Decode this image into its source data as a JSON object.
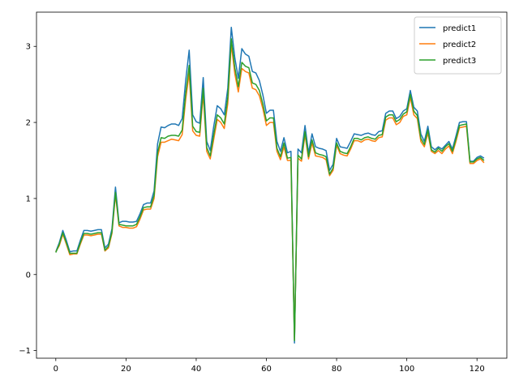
{
  "chart_data": {
    "type": "line",
    "title": "",
    "xlabel": "",
    "ylabel": "",
    "xlim": [
      -5.5,
      128.5
    ],
    "ylim": [
      -1.1,
      3.45
    ],
    "xticks": [
      0,
      20,
      40,
      60,
      80,
      100,
      120
    ],
    "yticks": [
      -1,
      0,
      1,
      2,
      3
    ],
    "grid": false,
    "legend_position": "top-right",
    "x_start": 0,
    "series": [
      {
        "name": "predict1",
        "color": "#1f77b4",
        "values": [
          0.3,
          0.42,
          0.58,
          0.45,
          0.3,
          0.31,
          0.31,
          0.45,
          0.58,
          0.58,
          0.57,
          0.58,
          0.59,
          0.59,
          0.35,
          0.4,
          0.6,
          1.15,
          0.68,
          0.7,
          0.7,
          0.69,
          0.69,
          0.7,
          0.8,
          0.92,
          0.94,
          0.94,
          1.1,
          1.72,
          1.94,
          1.93,
          1.96,
          1.98,
          1.98,
          1.96,
          2.05,
          2.55,
          2.95,
          2.1,
          2.01,
          1.99,
          2.59,
          1.75,
          1.63,
          1.95,
          2.22,
          2.18,
          2.1,
          2.45,
          3.25,
          2.85,
          2.58,
          2.97,
          2.9,
          2.87,
          2.67,
          2.65,
          2.55,
          2.36,
          2.12,
          2.16,
          2.16,
          1.75,
          1.62,
          1.8,
          1.6,
          1.62,
          -0.9,
          1.65,
          1.6,
          1.96,
          1.6,
          1.85,
          1.68,
          1.66,
          1.65,
          1.63,
          1.37,
          1.45,
          1.79,
          1.68,
          1.67,
          1.66,
          1.75,
          1.85,
          1.84,
          1.83,
          1.85,
          1.86,
          1.84,
          1.83,
          1.88,
          1.89,
          2.12,
          2.15,
          2.15,
          2.05,
          2.08,
          2.15,
          2.18,
          2.42,
          2.2,
          2.15,
          1.85,
          1.75,
          1.95,
          1.68,
          1.64,
          1.68,
          1.65,
          1.7,
          1.75,
          1.65,
          1.82,
          2.0,
          2.01,
          2.01,
          1.49,
          1.49,
          1.54,
          1.56,
          1.53
        ]
      },
      {
        "name": "predict2",
        "color": "#ff7f0e",
        "values": [
          0.3,
          0.38,
          0.53,
          0.4,
          0.26,
          0.27,
          0.27,
          0.4,
          0.52,
          0.52,
          0.51,
          0.52,
          0.53,
          0.53,
          0.31,
          0.35,
          0.54,
          1.05,
          0.64,
          0.62,
          0.62,
          0.61,
          0.61,
          0.63,
          0.73,
          0.85,
          0.86,
          0.86,
          1.0,
          1.55,
          1.74,
          1.74,
          1.76,
          1.78,
          1.77,
          1.76,
          1.84,
          2.3,
          2.65,
          1.89,
          1.83,
          1.82,
          2.37,
          1.62,
          1.52,
          1.78,
          2.04,
          2.0,
          1.92,
          2.25,
          3.03,
          2.64,
          2.4,
          2.71,
          2.67,
          2.65,
          2.45,
          2.43,
          2.35,
          2.18,
          1.96,
          2.0,
          2.0,
          1.62,
          1.51,
          1.68,
          1.5,
          1.5,
          -0.85,
          1.53,
          1.49,
          1.84,
          1.52,
          1.73,
          1.56,
          1.55,
          1.54,
          1.51,
          1.3,
          1.37,
          1.7,
          1.59,
          1.57,
          1.56,
          1.65,
          1.76,
          1.76,
          1.74,
          1.77,
          1.78,
          1.76,
          1.75,
          1.8,
          1.81,
          2.03,
          2.06,
          2.06,
          1.97,
          2.0,
          2.08,
          2.1,
          2.33,
          2.1,
          2.05,
          1.75,
          1.68,
          1.86,
          1.62,
          1.59,
          1.63,
          1.59,
          1.65,
          1.69,
          1.59,
          1.75,
          1.93,
          1.94,
          1.95,
          1.46,
          1.46,
          1.5,
          1.52,
          1.47
        ]
      },
      {
        "name": "predict3",
        "color": "#2ca02c",
        "values": [
          0.29,
          0.4,
          0.55,
          0.42,
          0.28,
          0.28,
          0.28,
          0.42,
          0.54,
          0.54,
          0.53,
          0.54,
          0.55,
          0.55,
          0.32,
          0.37,
          0.56,
          1.08,
          0.66,
          0.65,
          0.64,
          0.64,
          0.64,
          0.66,
          0.76,
          0.88,
          0.89,
          0.89,
          1.04,
          1.6,
          1.8,
          1.79,
          1.82,
          1.83,
          1.83,
          1.82,
          1.9,
          2.38,
          2.75,
          1.95,
          1.88,
          1.87,
          2.45,
          1.67,
          1.56,
          1.84,
          2.1,
          2.06,
          1.98,
          2.33,
          3.1,
          2.72,
          2.47,
          2.79,
          2.74,
          2.72,
          2.52,
          2.5,
          2.42,
          2.24,
          2.02,
          2.06,
          2.06,
          1.66,
          1.55,
          1.73,
          1.53,
          1.54,
          -0.87,
          1.57,
          1.52,
          1.88,
          1.55,
          1.77,
          1.6,
          1.58,
          1.57,
          1.55,
          1.32,
          1.4,
          1.73,
          1.62,
          1.6,
          1.59,
          1.68,
          1.79,
          1.79,
          1.77,
          1.8,
          1.81,
          1.79,
          1.78,
          1.83,
          1.84,
          2.07,
          2.1,
          2.1,
          2.01,
          2.04,
          2.11,
          2.14,
          2.37,
          2.15,
          2.09,
          1.79,
          1.71,
          1.9,
          1.64,
          1.61,
          1.66,
          1.62,
          1.68,
          1.72,
          1.62,
          1.78,
          1.96,
          1.97,
          1.98,
          1.48,
          1.48,
          1.52,
          1.54,
          1.5
        ]
      }
    ]
  }
}
